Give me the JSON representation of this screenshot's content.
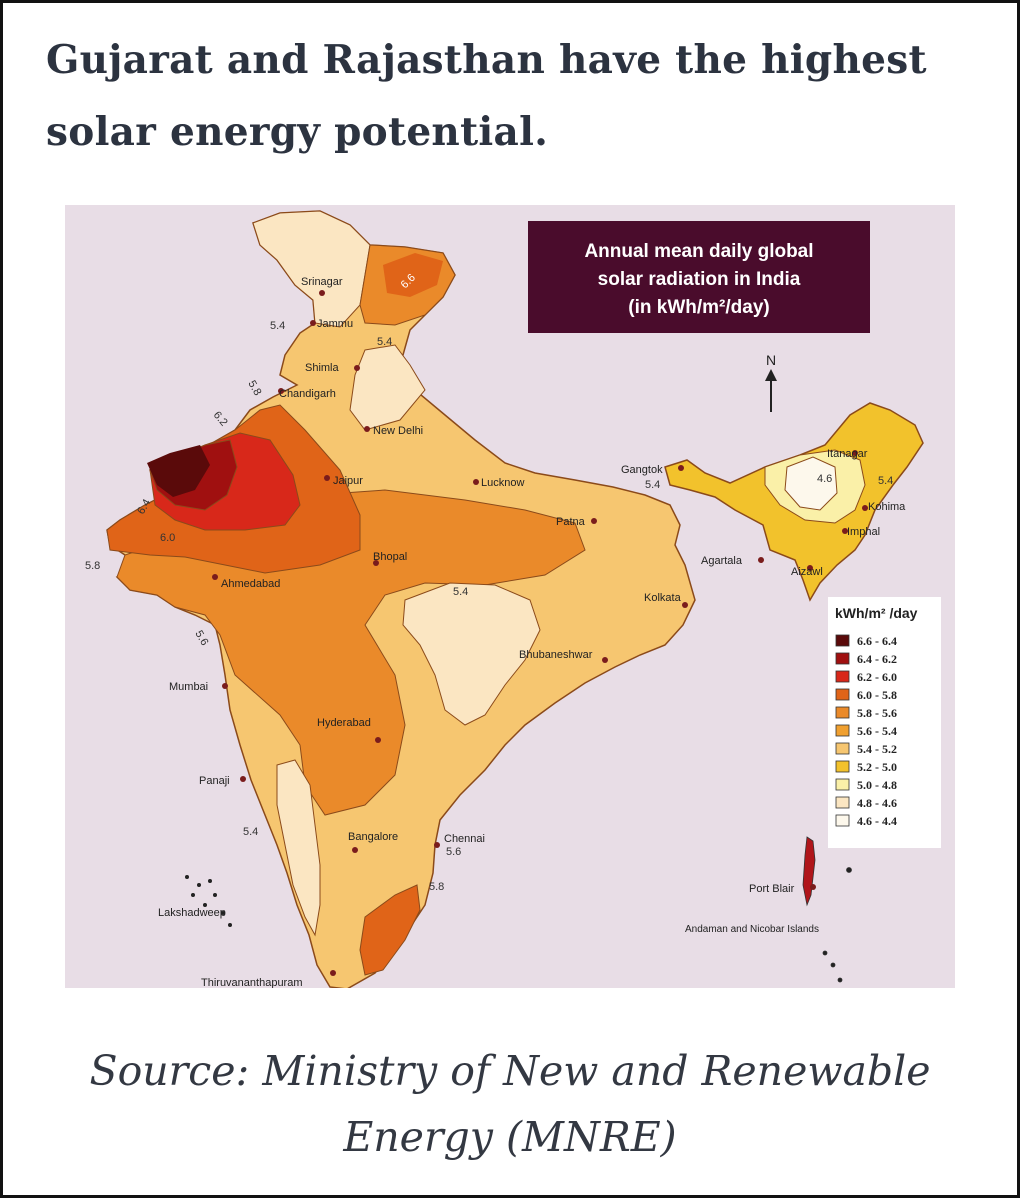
{
  "headline": "Gujarat and Rajasthan have the highest solar energy potential.",
  "source": "Source: Ministry of New and Renewable Energy (MNRE)",
  "map": {
    "title_lines": [
      "Annual mean daily global",
      "solar radiation in India",
      "(in kWh/m²/day)"
    ],
    "north_label": "N",
    "legend_title": "kWh/m² /day",
    "legend": [
      {
        "label": "6.6 - 6.4",
        "color": "#5a0a0a"
      },
      {
        "label": "6.4 - 6.2",
        "color": "#a01010"
      },
      {
        "label": "6.2 - 6.0",
        "color": "#d8281a"
      },
      {
        "label": "6.0 - 5.8",
        "color": "#e06418"
      },
      {
        "label": "5.8 - 5.6",
        "color": "#ea8a2a"
      },
      {
        "label": "5.6 - 5.4",
        "color": "#f0a030"
      },
      {
        "label": "5.4 - 5.2",
        "color": "#f6c670"
      },
      {
        "label": "5.2 - 5.0",
        "color": "#f2c22c"
      },
      {
        "label": "5.0 - 4.8",
        "color": "#faf0a8"
      },
      {
        "label": "4.8 - 4.6",
        "color": "#fbe6c2"
      },
      {
        "label": "4.6 - 4.4",
        "color": "#fdf8ec"
      }
    ],
    "cities": {
      "srinagar": "Srinagar",
      "jammu": "Jammu",
      "shimla": "Shimla",
      "chandigarh": "Chandigarh",
      "new_delhi": "New Delhi",
      "jaipur": "Jaipur",
      "lucknow": "Lucknow",
      "patna": "Patna",
      "gangtok": "Gangtok",
      "itanagar": "Itanagar",
      "kohima": "Kohima",
      "imphal": "Imphal",
      "agartala": "Agartala",
      "aizawl": "Aizawl",
      "bhopal": "Bhopal",
      "ahmedabad": "Ahmedabad",
      "kolkata": "Kolkata",
      "bhubaneshwar": "Bhubaneshwar",
      "mumbai": "Mumbai",
      "hyderabad": "Hyderabad",
      "panaji": "Panaji",
      "bangalore": "Bangalore",
      "chennai": "Chennai",
      "lakshadweep": "Lakshadweep",
      "port_blair": "Port Blair",
      "thiruvananthapuram": "Thiruvananthapuram",
      "andaman": "Andaman and Nicobar Islands"
    },
    "contours": {
      "c_5_4_jammu": "5.4",
      "c_6_6_ladakh": "6.6",
      "c_5_4_himachal": "5.4",
      "c_5_8_punjab": "5.8",
      "c_6_2_rajasthan": "6.2",
      "c_6_4_west": "6.4",
      "c_6_0_west": "6.0",
      "c_5_8_gujarat": "5.8",
      "c_5_6_gujarat": "5.6",
      "c_5_4_central": "5.4",
      "c_5_4_sikkim": "5.4",
      "c_4_6_northeast": "4.6",
      "c_5_4_northeast": "5.4",
      "c_5_4_west_coast": "5.4",
      "c_5_6_chennai": "5.6",
      "c_5_8_south": "5.8"
    }
  }
}
